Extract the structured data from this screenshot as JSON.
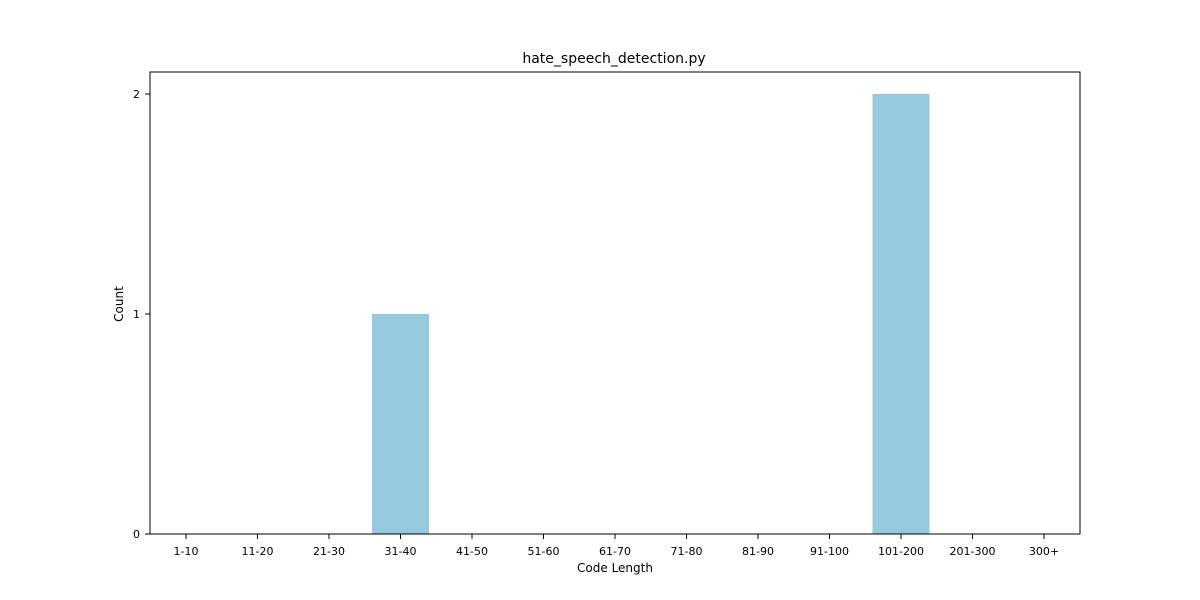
{
  "chart_data": {
    "type": "bar",
    "title": "hate_speech_detection.py",
    "xlabel": "Code Length",
    "ylabel": "Count",
    "categories": [
      "1-10",
      "11-20",
      "21-30",
      "31-40",
      "41-50",
      "51-60",
      "61-70",
      "71-80",
      "81-90",
      "91-100",
      "101-200",
      "201-300",
      "300+"
    ],
    "values": [
      0,
      0,
      0,
      1,
      0,
      0,
      0,
      0,
      0,
      0,
      2,
      0,
      0
    ],
    "yticks": [
      0,
      1,
      2
    ],
    "ylim": [
      0,
      2.1
    ],
    "grid": false,
    "bar_color": "#96c9dd"
  }
}
